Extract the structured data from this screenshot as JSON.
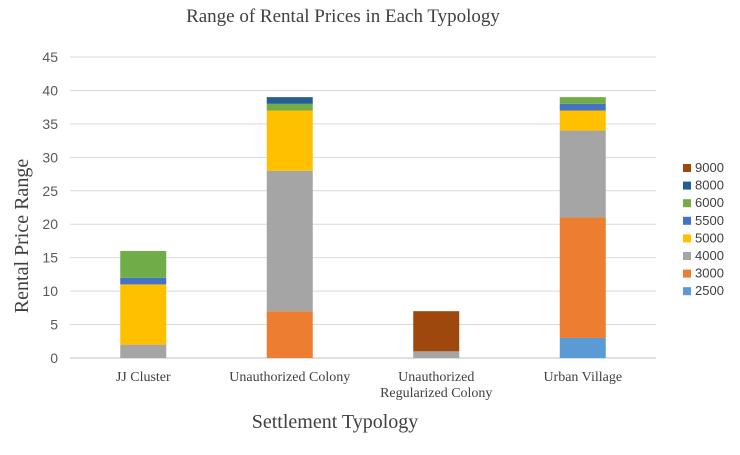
{
  "chart_data": {
    "type": "bar",
    "stacked": true,
    "title": "Range of Rental Prices in Each Typology",
    "xlabel": "Settlement Typology",
    "ylabel": "Rental Price Range",
    "ylim": [
      0,
      45
    ],
    "yticks": [
      0,
      5,
      10,
      15,
      20,
      25,
      30,
      35,
      40,
      45
    ],
    "grid": true,
    "legend_position": "right",
    "categories": [
      [
        "JJ Cluster"
      ],
      [
        "Unauthorized Colony"
      ],
      [
        "Unauthorized",
        "Regularized Colony"
      ],
      [
        "Urban Village"
      ]
    ],
    "series": [
      {
        "name": "2500",
        "color": "#5b9bd5",
        "values": [
          0,
          0,
          0,
          3
        ]
      },
      {
        "name": "3000",
        "color": "#ed7d31",
        "values": [
          0,
          7,
          0,
          18
        ]
      },
      {
        "name": "4000",
        "color": "#a5a5a5",
        "values": [
          2,
          21,
          1,
          13
        ]
      },
      {
        "name": "5000",
        "color": "#ffc000",
        "values": [
          9,
          9,
          0,
          3
        ]
      },
      {
        "name": "5500",
        "color": "#4472c4",
        "values": [
          1,
          0,
          0,
          1
        ]
      },
      {
        "name": "6000",
        "color": "#70ad47",
        "values": [
          4,
          1,
          0,
          1
        ]
      },
      {
        "name": "8000",
        "color": "#255e91",
        "values": [
          0,
          1,
          0,
          0
        ]
      },
      {
        "name": "9000",
        "color": "#9e480e",
        "values": [
          0,
          0,
          6,
          0
        ]
      }
    ]
  }
}
